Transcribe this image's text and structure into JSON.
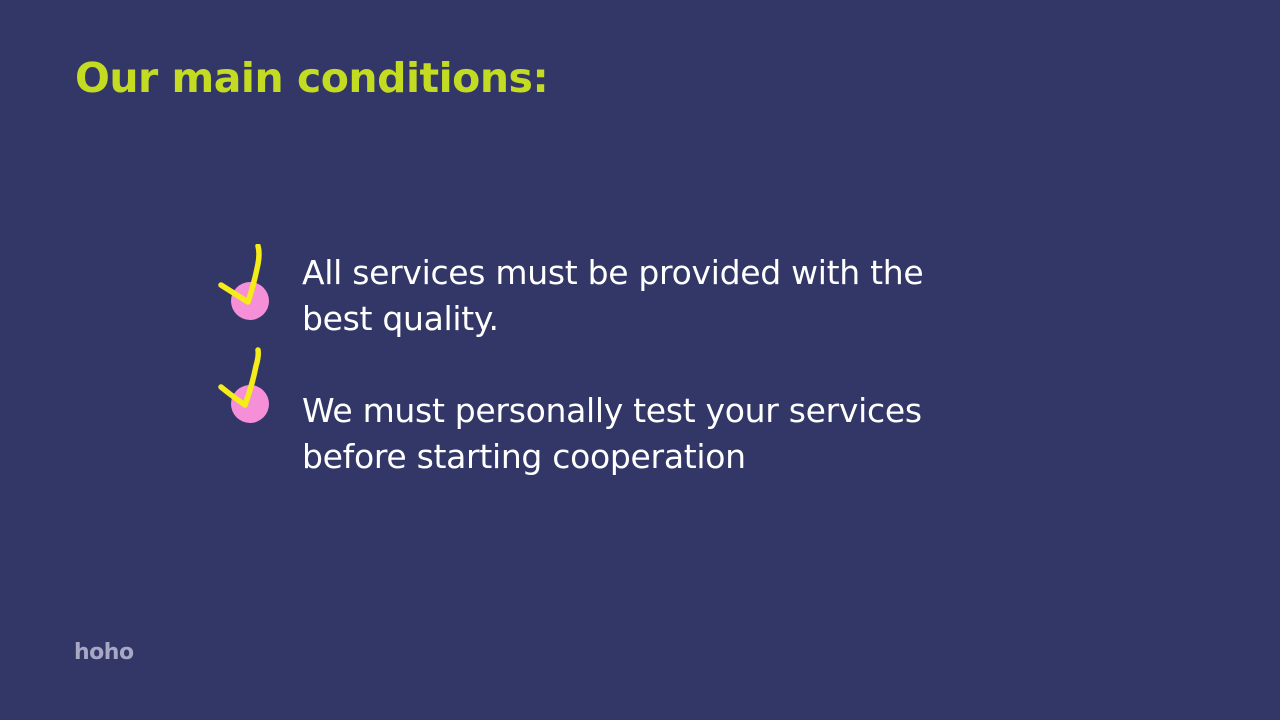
{
  "slide": {
    "title": "Our main conditions:",
    "items": [
      {
        "text": "All services must be provided with the best quality."
      },
      {
        "text": "We must personally test your services before starting cooperation"
      }
    ],
    "logo": "hoho"
  },
  "colors": {
    "background": "#333767",
    "title": "#c3dc21",
    "text": "#ffffff",
    "bullet_dot": "#f58fd8",
    "checkmark": "#f5ec1a",
    "logo": "#a6a8c4"
  },
  "icons": {
    "bullet": "checkmark-icon"
  }
}
